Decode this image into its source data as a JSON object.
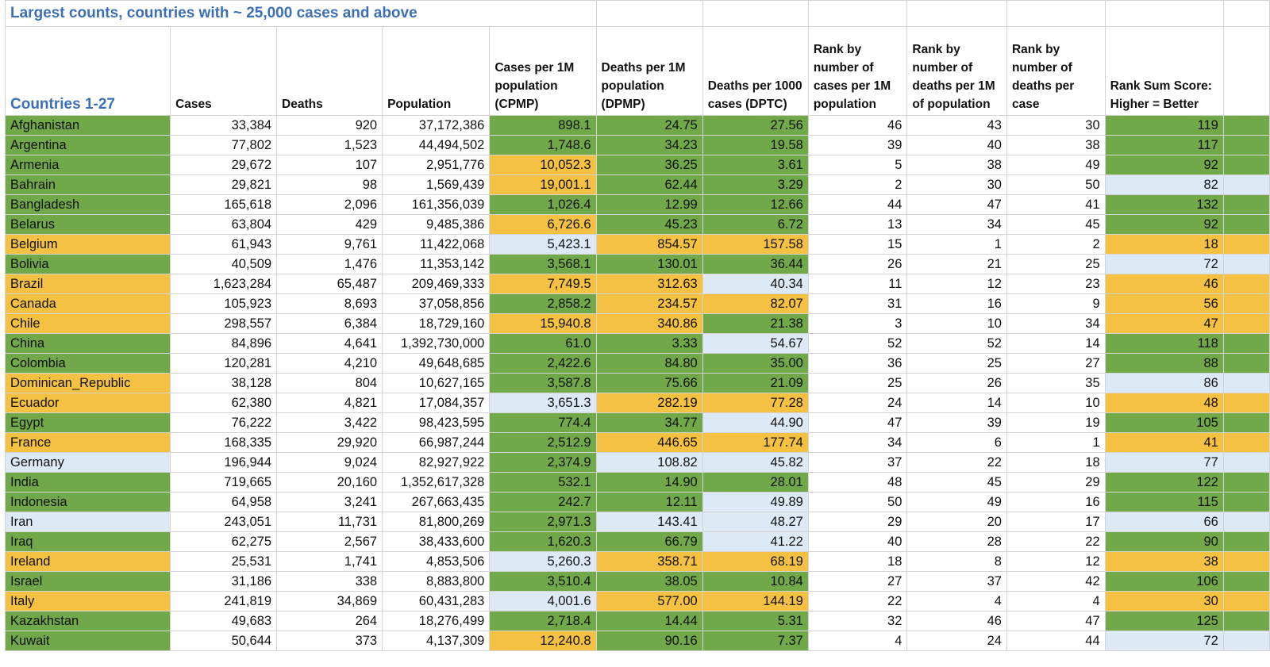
{
  "title": "Largest counts, countries with ~ 25,000 cases and above",
  "headers": {
    "countries": "Countries 1-27",
    "cases": "Cases",
    "deaths": "Deaths",
    "population": "Population",
    "cpmp": "Cases per 1M population (CPMP)",
    "dpmp": "Deaths per 1M population (DPMP)",
    "dptc": "Deaths per 1000 cases (DPTC)",
    "rank_cases": "Rank by number of cases per 1M population",
    "rank_deaths": "Rank by number of deaths per 1M of population",
    "rank_death_case": "Rank by number of deaths per case",
    "rank_sum": "Rank Sum Score: Higher = Better"
  },
  "colors": {
    "green": "#70a84a",
    "orange": "#f5c143",
    "blue": "#dde9f5"
  },
  "rows": [
    {
      "name": "Afghanistan",
      "cases": "33,384",
      "deaths": "920",
      "population": "37,172,386",
      "cpmp": "898.1",
      "dpmp": "24.75",
      "dptc": "27.56",
      "r1": "46",
      "r2": "43",
      "r3": "30",
      "sum": "119",
      "c": [
        "green",
        "green",
        "green",
        "green",
        "green"
      ]
    },
    {
      "name": "Argentina",
      "cases": "77,802",
      "deaths": "1,523",
      "population": "44,494,502",
      "cpmp": "1,748.6",
      "dpmp": "34.23",
      "dptc": "19.58",
      "r1": "39",
      "r2": "40",
      "r3": "38",
      "sum": "117",
      "c": [
        "green",
        "green",
        "green",
        "green",
        "green"
      ]
    },
    {
      "name": "Armenia",
      "cases": "29,672",
      "deaths": "107",
      "population": "2,951,776",
      "cpmp": "10,052.3",
      "dpmp": "36.25",
      "dptc": "3.61",
      "r1": "5",
      "r2": "38",
      "r3": "49",
      "sum": "92",
      "c": [
        "green",
        "orange",
        "green",
        "green",
        "green"
      ]
    },
    {
      "name": "Bahrain",
      "cases": "29,821",
      "deaths": "98",
      "population": "1,569,439",
      "cpmp": "19,001.1",
      "dpmp": "62.44",
      "dptc": "3.29",
      "r1": "2",
      "r2": "30",
      "r3": "50",
      "sum": "82",
      "c": [
        "green",
        "orange",
        "green",
        "green",
        "blue"
      ]
    },
    {
      "name": "Bangladesh",
      "cases": "165,618",
      "deaths": "2,096",
      "population": "161,356,039",
      "cpmp": "1,026.4",
      "dpmp": "12.99",
      "dptc": "12.66",
      "r1": "44",
      "r2": "47",
      "r3": "41",
      "sum": "132",
      "c": [
        "green",
        "green",
        "green",
        "green",
        "green"
      ]
    },
    {
      "name": "Belarus",
      "cases": "63,804",
      "deaths": "429",
      "population": "9,485,386",
      "cpmp": "6,726.6",
      "dpmp": "45.23",
      "dptc": "6.72",
      "r1": "13",
      "r2": "34",
      "r3": "45",
      "sum": "92",
      "c": [
        "green",
        "orange",
        "green",
        "green",
        "green"
      ]
    },
    {
      "name": "Belgium",
      "cases": "61,943",
      "deaths": "9,761",
      "population": "11,422,068",
      "cpmp": "5,423.1",
      "dpmp": "854.57",
      "dptc": "157.58",
      "r1": "15",
      "r2": "1",
      "r3": "2",
      "sum": "18",
      "c": [
        "orange",
        "blue",
        "orange",
        "orange",
        "orange"
      ]
    },
    {
      "name": "Bolivia",
      "cases": "40,509",
      "deaths": "1,476",
      "population": "11,353,142",
      "cpmp": "3,568.1",
      "dpmp": "130.01",
      "dptc": "36.44",
      "r1": "26",
      "r2": "21",
      "r3": "25",
      "sum": "72",
      "c": [
        "green",
        "green",
        "green",
        "green",
        "blue"
      ]
    },
    {
      "name": "Brazil",
      "cases": "1,623,284",
      "deaths": "65,487",
      "population": "209,469,333",
      "cpmp": "7,749.5",
      "dpmp": "312.63",
      "dptc": "40.34",
      "r1": "11",
      "r2": "12",
      "r3": "23",
      "sum": "46",
      "c": [
        "orange",
        "orange",
        "orange",
        "blue",
        "orange"
      ]
    },
    {
      "name": "Canada",
      "cases": "105,923",
      "deaths": "8,693",
      "population": "37,058,856",
      "cpmp": "2,858.2",
      "dpmp": "234.57",
      "dptc": "82.07",
      "r1": "31",
      "r2": "16",
      "r3": "9",
      "sum": "56",
      "c": [
        "orange",
        "green",
        "orange",
        "orange",
        "orange"
      ]
    },
    {
      "name": "Chile",
      "cases": "298,557",
      "deaths": "6,384",
      "population": "18,729,160",
      "cpmp": "15,940.8",
      "dpmp": "340.86",
      "dptc": "21.38",
      "r1": "3",
      "r2": "10",
      "r3": "34",
      "sum": "47",
      "c": [
        "orange",
        "orange",
        "orange",
        "green",
        "orange"
      ]
    },
    {
      "name": "China",
      "cases": "84,896",
      "deaths": "4,641",
      "population": "1,392,730,000",
      "cpmp": "61.0",
      "dpmp": "3.33",
      "dptc": "54.67",
      "r1": "52",
      "r2": "52",
      "r3": "14",
      "sum": "118",
      "c": [
        "green",
        "green",
        "green",
        "blue",
        "green"
      ]
    },
    {
      "name": "Colombia",
      "cases": "120,281",
      "deaths": "4,210",
      "population": "49,648,685",
      "cpmp": "2,422.6",
      "dpmp": "84.80",
      "dptc": "35.00",
      "r1": "36",
      "r2": "25",
      "r3": "27",
      "sum": "88",
      "c": [
        "green",
        "green",
        "green",
        "green",
        "green"
      ]
    },
    {
      "name": "Dominican_Republic",
      "cases": "38,128",
      "deaths": "804",
      "population": "10,627,165",
      "cpmp": "3,587.8",
      "dpmp": "75.66",
      "dptc": "21.09",
      "r1": "25",
      "r2": "26",
      "r3": "35",
      "sum": "86",
      "c": [
        "orange",
        "green",
        "green",
        "green",
        "blue"
      ]
    },
    {
      "name": "Ecuador",
      "cases": "62,380",
      "deaths": "4,821",
      "population": "17,084,357",
      "cpmp": "3,651.3",
      "dpmp": "282.19",
      "dptc": "77.28",
      "r1": "24",
      "r2": "14",
      "r3": "10",
      "sum": "48",
      "c": [
        "orange",
        "blue",
        "orange",
        "orange",
        "orange"
      ]
    },
    {
      "name": "Egypt",
      "cases": "76,222",
      "deaths": "3,422",
      "population": "98,423,595",
      "cpmp": "774.4",
      "dpmp": "34.77",
      "dptc": "44.90",
      "r1": "47",
      "r2": "39",
      "r3": "19",
      "sum": "105",
      "c": [
        "green",
        "green",
        "green",
        "blue",
        "green"
      ]
    },
    {
      "name": "France",
      "cases": "168,335",
      "deaths": "29,920",
      "population": "66,987,244",
      "cpmp": "2,512.9",
      "dpmp": "446.65",
      "dptc": "177.74",
      "r1": "34",
      "r2": "6",
      "r3": "1",
      "sum": "41",
      "c": [
        "orange",
        "green",
        "orange",
        "orange",
        "orange"
      ]
    },
    {
      "name": "Germany",
      "cases": "196,944",
      "deaths": "9,024",
      "population": "82,927,922",
      "cpmp": "2,374.9",
      "dpmp": "108.82",
      "dptc": "45.82",
      "r1": "37",
      "r2": "22",
      "r3": "18",
      "sum": "77",
      "c": [
        "blue",
        "green",
        "blue",
        "blue",
        "blue"
      ]
    },
    {
      "name": "India",
      "cases": "719,665",
      "deaths": "20,160",
      "population": "1,352,617,328",
      "cpmp": "532.1",
      "dpmp": "14.90",
      "dptc": "28.01",
      "r1": "48",
      "r2": "45",
      "r3": "29",
      "sum": "122",
      "c": [
        "green",
        "green",
        "green",
        "green",
        "green"
      ]
    },
    {
      "name": "Indonesia",
      "cases": "64,958",
      "deaths": "3,241",
      "population": "267,663,435",
      "cpmp": "242.7",
      "dpmp": "12.11",
      "dptc": "49.89",
      "r1": "50",
      "r2": "49",
      "r3": "16",
      "sum": "115",
      "c": [
        "green",
        "green",
        "green",
        "blue",
        "green"
      ]
    },
    {
      "name": "Iran",
      "cases": "243,051",
      "deaths": "11,731",
      "population": "81,800,269",
      "cpmp": "2,971.3",
      "dpmp": "143.41",
      "dptc": "48.27",
      "r1": "29",
      "r2": "20",
      "r3": "17",
      "sum": "66",
      "c": [
        "blue",
        "green",
        "blue",
        "blue",
        "blue"
      ]
    },
    {
      "name": "Iraq",
      "cases": "62,275",
      "deaths": "2,567",
      "population": "38,433,600",
      "cpmp": "1,620.3",
      "dpmp": "66.79",
      "dptc": "41.22",
      "r1": "40",
      "r2": "28",
      "r3": "22",
      "sum": "90",
      "c": [
        "green",
        "green",
        "green",
        "blue",
        "green"
      ]
    },
    {
      "name": "Ireland",
      "cases": "25,531",
      "deaths": "1,741",
      "population": "4,853,506",
      "cpmp": "5,260.3",
      "dpmp": "358.71",
      "dptc": "68.19",
      "r1": "18",
      "r2": "8",
      "r3": "12",
      "sum": "38",
      "c": [
        "orange",
        "blue",
        "orange",
        "orange",
        "orange"
      ]
    },
    {
      "name": "Israel",
      "cases": "31,186",
      "deaths": "338",
      "population": "8,883,800",
      "cpmp": "3,510.4",
      "dpmp": "38.05",
      "dptc": "10.84",
      "r1": "27",
      "r2": "37",
      "r3": "42",
      "sum": "106",
      "c": [
        "green",
        "green",
        "green",
        "green",
        "green"
      ]
    },
    {
      "name": "Italy",
      "cases": "241,819",
      "deaths": "34,869",
      "population": "60,431,283",
      "cpmp": "4,001.6",
      "dpmp": "577.00",
      "dptc": "144.19",
      "r1": "22",
      "r2": "4",
      "r3": "4",
      "sum": "30",
      "c": [
        "orange",
        "blue",
        "orange",
        "orange",
        "orange"
      ]
    },
    {
      "name": "Kazakhstan",
      "cases": "49,683",
      "deaths": "264",
      "population": "18,276,499",
      "cpmp": "2,718.4",
      "dpmp": "14.44",
      "dptc": "5.31",
      "r1": "32",
      "r2": "46",
      "r3": "47",
      "sum": "125",
      "c": [
        "green",
        "green",
        "green",
        "green",
        "green"
      ]
    },
    {
      "name": "Kuwait",
      "cases": "50,644",
      "deaths": "373",
      "population": "4,137,309",
      "cpmp": "12,240.8",
      "dpmp": "90.16",
      "dptc": "7.37",
      "r1": "4",
      "r2": "24",
      "r3": "44",
      "sum": "72",
      "c": [
        "green",
        "orange",
        "green",
        "green",
        "blue"
      ]
    }
  ]
}
